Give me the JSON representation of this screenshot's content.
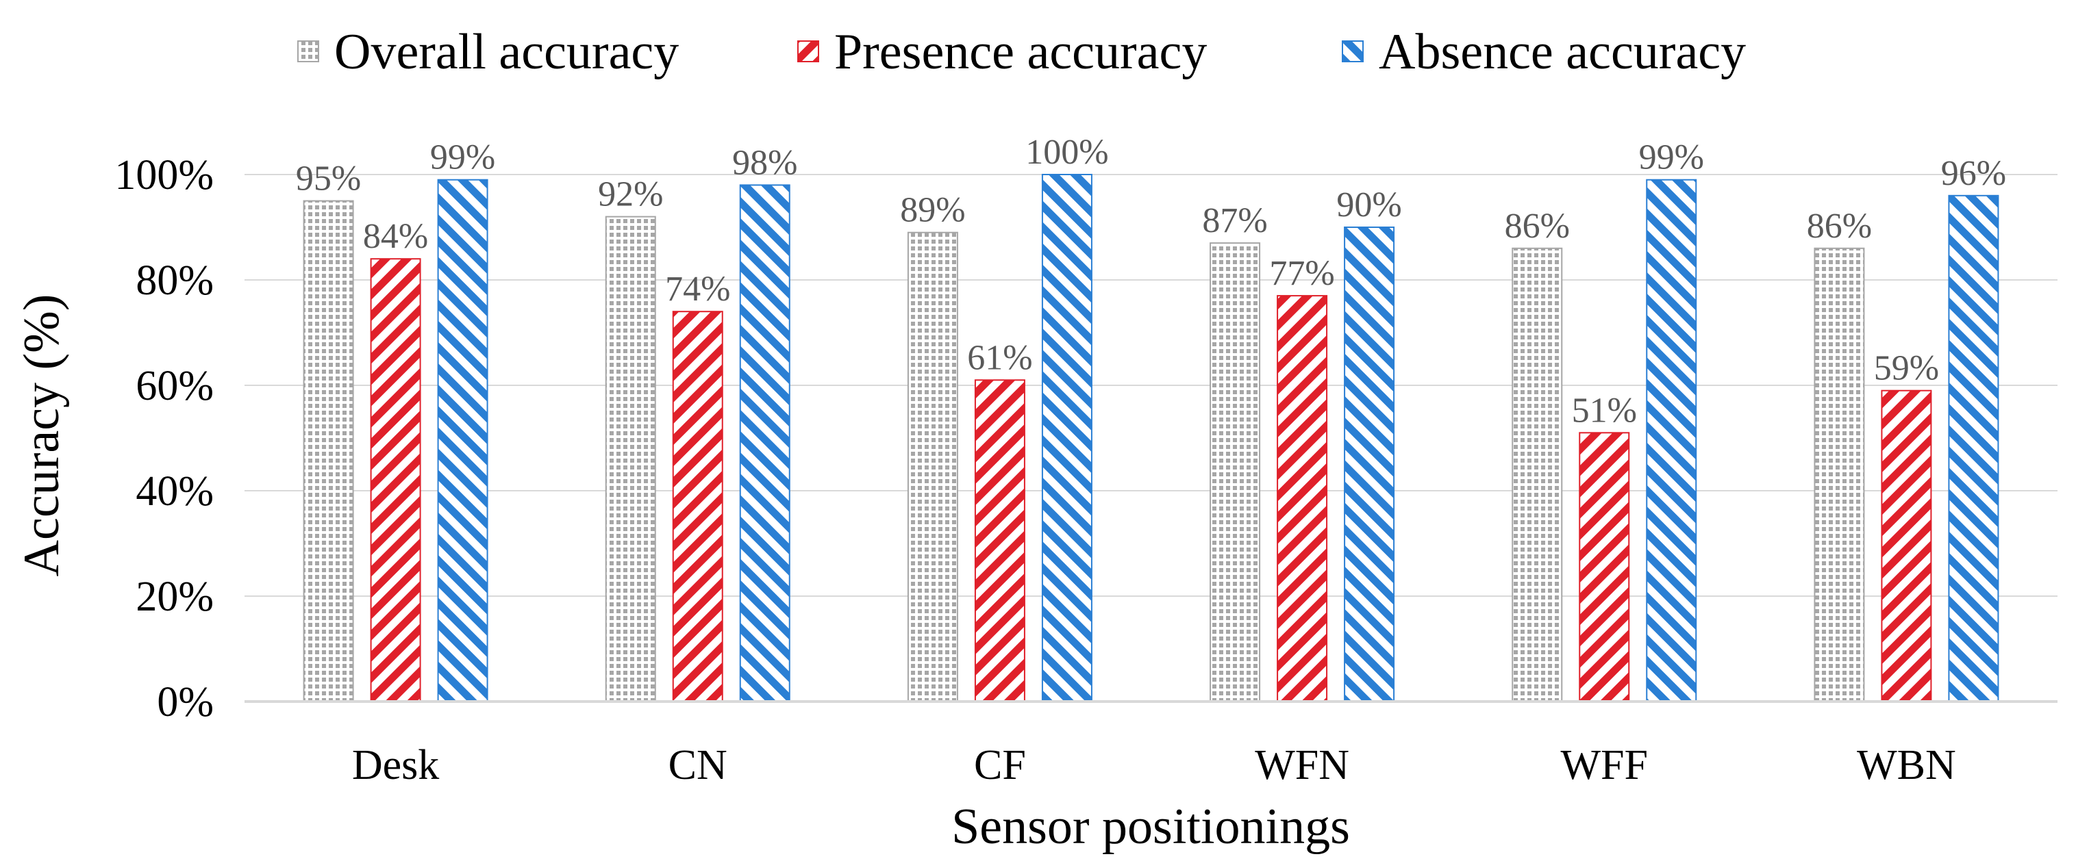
{
  "chart_data": {
    "type": "bar",
    "xlabel": "Sensor positionings",
    "ylabel": "Accuracy (%)",
    "ylim": [
      0,
      100
    ],
    "yticks": [
      0,
      20,
      40,
      60,
      80,
      100
    ],
    "ytick_labels": [
      "0%",
      "20%",
      "40%",
      "60%",
      "80%",
      "100%"
    ],
    "grid": true,
    "legend_position": "top",
    "categories": [
      "Desk",
      "CN",
      "CF",
      "WFN",
      "WFF",
      "WBN"
    ],
    "series": [
      {
        "name": "Overall accuracy",
        "color": "#a6a6a6",
        "pattern": "dots",
        "values": [
          95,
          92,
          89,
          87,
          86,
          86
        ],
        "labels": [
          "95%",
          "92%",
          "89%",
          "87%",
          "86%",
          "86%"
        ]
      },
      {
        "name": "Presence accuracy",
        "color": "#e0202a",
        "pattern": "diagonal",
        "values": [
          84,
          74,
          61,
          77,
          51,
          59
        ],
        "labels": [
          "84%",
          "74%",
          "61%",
          "77%",
          "51%",
          "59%"
        ]
      },
      {
        "name": "Absence accuracy",
        "color": "#2a7fd4",
        "pattern": "diagonal",
        "values": [
          99,
          98,
          100,
          90,
          99,
          96
        ],
        "labels": [
          "99%",
          "98%",
          "100%",
          "90%",
          "99%",
          "96%"
        ]
      }
    ]
  }
}
